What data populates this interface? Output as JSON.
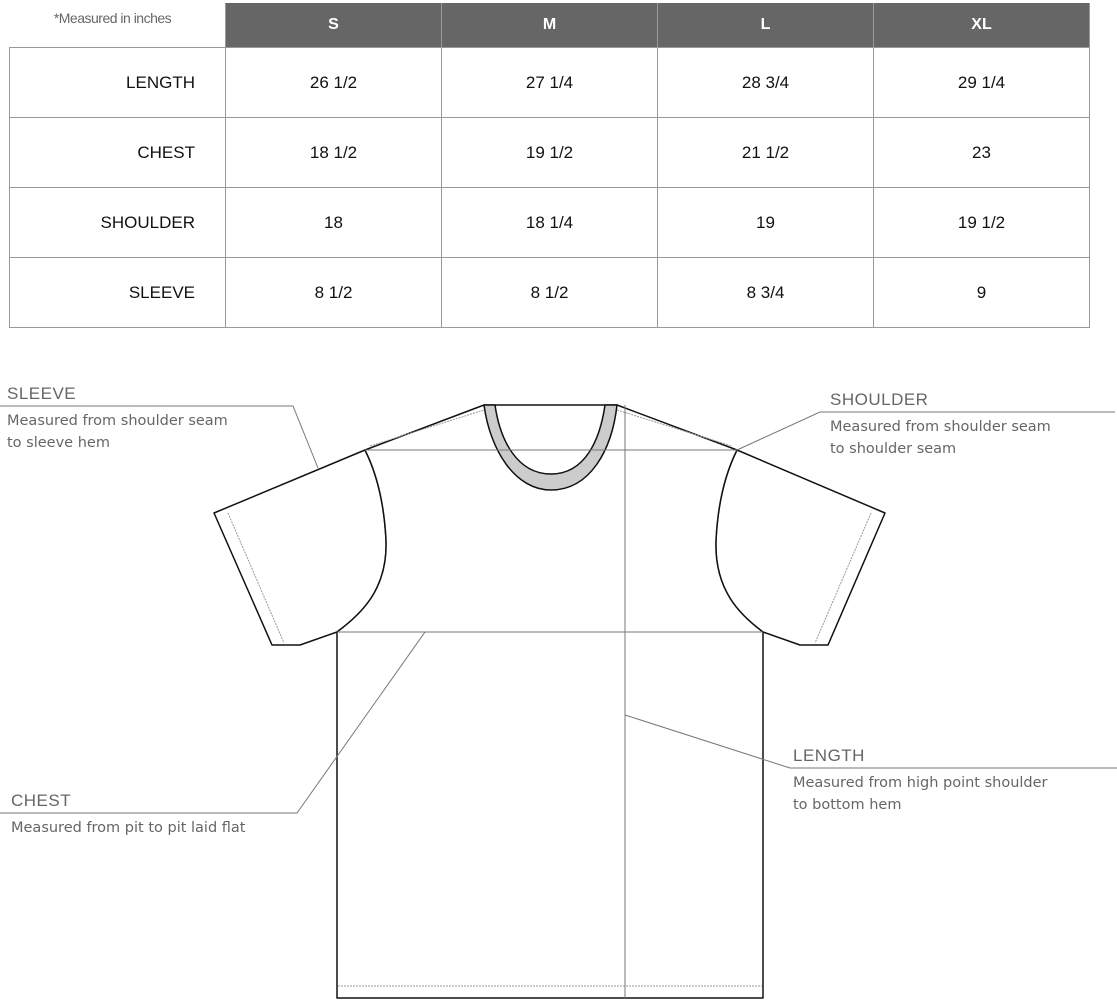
{
  "note": "*Measured in inches",
  "sizes": [
    "S",
    "M",
    "L",
    "XL"
  ],
  "rows": [
    {
      "label": "LENGTH",
      "values": [
        "26 1/2",
        "27 1/4",
        "28 3/4",
        "29 1/4"
      ]
    },
    {
      "label": "CHEST",
      "values": [
        "18 1/2",
        "19 1/2",
        "21 1/2",
        "23"
      ]
    },
    {
      "label": "SHOULDER",
      "values": [
        "18",
        "18 1/4",
        "19",
        "19 1/2"
      ]
    },
    {
      "label": "SLEEVE",
      "values": [
        "8 1/2",
        "8 1/2",
        "8 3/4",
        "9"
      ]
    }
  ],
  "annotations": {
    "sleeve": {
      "title": "SLEEVE",
      "line1": "Measured from shoulder seam",
      "line2": "to sleeve hem"
    },
    "shoulder": {
      "title": "SHOULDER",
      "line1": "Measured from shoulder seam",
      "line2": "to shoulder seam"
    },
    "chest": {
      "title": "CHEST",
      "line1": "Measured from pit to pit laid flat"
    },
    "length": {
      "title": "LENGTH",
      "line1": "Measured from high point shoulder",
      "line2": "to bottom hem"
    }
  },
  "colors": {
    "header_bg": "#666666",
    "text_gray": "#666666"
  }
}
